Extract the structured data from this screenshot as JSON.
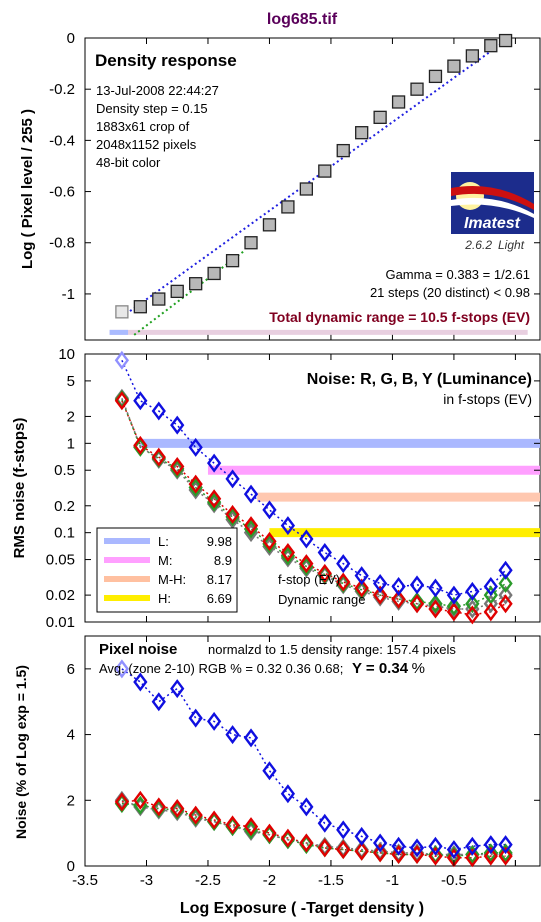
{
  "figure_title": "log685.tif",
  "x_axis": {
    "label": "Log Exposure ( -Target density )",
    "range": [
      -3.5,
      0.2
    ],
    "ticks": [
      -3.5,
      -3,
      -2.5,
      -2,
      -1.5,
      -1,
      -0.5
    ],
    "tick_labels": [
      "-3.5",
      "-3",
      "-2.5",
      "-2",
      "-1.5",
      "-1",
      "-0.5"
    ]
  },
  "colors": {
    "title": "#5a005a",
    "red": "#e00000",
    "green": "#2a9a2a",
    "blue": "#1010e0",
    "gray": "#666666",
    "purple_text": "#800020",
    "light_blue": "#aabbff"
  },
  "chart_data": [
    {
      "type": "scatter",
      "id": "density",
      "title": "Density response",
      "ylabel": "Log ( Pixel level / 255 )",
      "ylim": [
        -1.18,
        0.0
      ],
      "yticks": [
        0,
        -0.2,
        -0.4,
        -0.6,
        -0.8,
        -1
      ],
      "ytick_labels": [
        "0",
        "-0.2",
        "-0.4",
        "-0.6",
        "-0.8",
        "-1"
      ],
      "info_lines": [
        "13-Jul-2008 22:44:27",
        "Density step = 0.15",
        "1883x61 crop of",
        "2048x1152 pixels",
        "48-bit color"
      ],
      "logo_text": "Imatest",
      "version": "2.6.2",
      "version_edition": "Light",
      "gamma_text": "Gamma = 0.383 = 1/2.61",
      "steps_text": "21 steps (20 distinct) < 0.98",
      "dynamic_range_text": "Total dynamic range = 10.5 f-stops (EV)",
      "series": [
        {
          "x": [
            -3.2,
            -3.05,
            -2.9,
            -2.75,
            -2.6,
            -2.45,
            -2.3,
            -2.15,
            -2.0,
            -1.85,
            -1.7,
            -1.55,
            -1.4,
            -1.25,
            -1.1,
            -0.95,
            -0.8,
            -0.65,
            -0.5,
            -0.35,
            -0.2,
            -0.08
          ],
          "values": [
            -1.07,
            -1.05,
            -1.02,
            -0.99,
            -0.96,
            -0.92,
            -0.87,
            -0.8,
            -0.73,
            -0.66,
            -0.59,
            -0.52,
            -0.44,
            -0.37,
            -0.31,
            -0.25,
            -0.2,
            -0.15,
            -0.11,
            -0.07,
            -0.03,
            -0.01
          ]
        }
      ],
      "fit_line": {
        "x": [
          -3.2,
          -0.05
        ],
        "values": [
          -1.09,
          0.0
        ]
      },
      "range_bar": {
        "x": [
          -3.3,
          0.1
        ],
        "value": -1.15
      }
    },
    {
      "type": "line",
      "id": "noise",
      "title": "Noise: R, G, B, Y (Luminance)",
      "subtitle": "in f-stops (EV)",
      "ylabel": "RMS noise (f-stops)",
      "ylim": [
        0.01,
        10
      ],
      "yscale": "log",
      "yticks": [
        10,
        5,
        2,
        1,
        0.5,
        0.2,
        0.1,
        0.05,
        0.02,
        0.01
      ],
      "ytick_labels": [
        "10",
        "5",
        "2",
        "1",
        "0.5",
        "0.2",
        "0.1",
        "0.05",
        "0.02",
        "0.01"
      ],
      "legend": [
        {
          "label": "L:",
          "value": "9.98",
          "color": "#aab8ff"
        },
        {
          "label": "M:",
          "value": "8.9",
          "color": "#ffa0ff"
        },
        {
          "label": "M-H:",
          "value": "8.17",
          "color": "#ffc0a0"
        },
        {
          "label": "H:",
          "value": "6.69",
          "color": "#ffee00"
        }
      ],
      "hlines": [
        {
          "value": 1.0,
          "x0": -3.05,
          "color": "#aab8ff"
        },
        {
          "value": 0.5,
          "x0": -2.5,
          "color": "#ffa0ff"
        },
        {
          "value": 0.25,
          "x0": -2.1,
          "color": "#ffc8b0"
        },
        {
          "value": 0.1,
          "x0": -2.0,
          "color": "#ffee00"
        }
      ],
      "annotations": [
        "f-stop (EV)",
        "Dynamic range"
      ],
      "series": [
        {
          "name": "Y",
          "color": "#1010e0",
          "x": [
            -3.2,
            -3.05,
            -2.9,
            -2.75,
            -2.6,
            -2.45,
            -2.3,
            -2.15,
            -2.0,
            -1.85,
            -1.7,
            -1.55,
            -1.4,
            -1.25,
            -1.1,
            -0.95,
            -0.8,
            -0.65,
            -0.5,
            -0.35,
            -0.2,
            -0.08
          ],
          "values": [
            8.5,
            3.0,
            2.3,
            1.6,
            0.9,
            0.6,
            0.4,
            0.27,
            0.18,
            0.12,
            0.085,
            0.06,
            0.045,
            0.033,
            0.027,
            0.025,
            0.026,
            0.024,
            0.02,
            0.022,
            0.025,
            0.038
          ]
        },
        {
          "name": "R",
          "color": "#e00000",
          "x": [
            -3.2,
            -3.05,
            -2.9,
            -2.75,
            -2.6,
            -2.45,
            -2.3,
            -2.15,
            -2.0,
            -1.85,
            -1.7,
            -1.55,
            -1.4,
            -1.25,
            -1.1,
            -0.95,
            -0.8,
            -0.65,
            -0.5,
            -0.35,
            -0.2,
            -0.08
          ],
          "values": [
            3.0,
            0.95,
            0.7,
            0.55,
            0.35,
            0.24,
            0.16,
            0.12,
            0.08,
            0.06,
            0.045,
            0.035,
            0.028,
            0.024,
            0.02,
            0.018,
            0.016,
            0.014,
            0.013,
            0.012,
            0.013,
            0.016
          ]
        },
        {
          "name": "G",
          "color": "#2a9a2a",
          "x": [
            -3.2,
            -3.05,
            -2.9,
            -2.75,
            -2.6,
            -2.45,
            -2.3,
            -2.15,
            -2.0,
            -1.85,
            -1.7,
            -1.55,
            -1.4,
            -1.25,
            -1.1,
            -0.95,
            -0.8,
            -0.65,
            -0.5,
            -0.35,
            -0.2,
            -0.08
          ],
          "values": [
            3.1,
            0.9,
            0.68,
            0.52,
            0.32,
            0.22,
            0.15,
            0.11,
            0.075,
            0.055,
            0.042,
            0.034,
            0.027,
            0.023,
            0.02,
            0.018,
            0.017,
            0.016,
            0.015,
            0.016,
            0.02,
            0.027
          ]
        },
        {
          "name": "B",
          "color": "#777777",
          "x": [
            -3.2,
            -3.05,
            -2.9,
            -2.75,
            -2.6,
            -2.45,
            -2.3,
            -2.15,
            -2.0,
            -1.85,
            -1.7,
            -1.55,
            -1.4,
            -1.25,
            -1.1,
            -0.95,
            -0.8,
            -0.65,
            -0.5,
            -0.35,
            -0.2,
            -0.08
          ],
          "values": [
            3.2,
            0.92,
            0.66,
            0.5,
            0.3,
            0.21,
            0.14,
            0.1,
            0.07,
            0.052,
            0.04,
            0.033,
            0.026,
            0.022,
            0.019,
            0.017,
            0.016,
            0.015,
            0.014,
            0.014,
            0.016,
            0.02
          ]
        }
      ]
    },
    {
      "type": "line",
      "id": "pixel_noise",
      "title": "Pixel noise",
      "subtitle": "normalzd to 1.5 density range: 157.4 pixels",
      "avg_prefix": "Avg. (zone 2-10) RGB % = 0.32  0.36  0.68;",
      "avg_y": "Y = 0.34",
      "avg_suffix": "%",
      "ylabel": "Noise (% of Log exp = 1.5)",
      "ylim": [
        0,
        7
      ],
      "yticks": [
        0,
        2,
        4,
        6
      ],
      "ytick_labels": [
        "0",
        "2",
        "4",
        "6"
      ],
      "series": [
        {
          "name": "Y",
          "color": "#1010e0",
          "x": [
            -3.2,
            -3.05,
            -2.9,
            -2.75,
            -2.6,
            -2.45,
            -2.3,
            -2.15,
            -2.0,
            -1.85,
            -1.7,
            -1.55,
            -1.4,
            -1.25,
            -1.1,
            -0.95,
            -0.8,
            -0.65,
            -0.5,
            -0.35,
            -0.2,
            -0.08
          ],
          "values": [
            6.0,
            5.6,
            5.0,
            5.4,
            4.5,
            4.4,
            4.0,
            3.9,
            2.9,
            2.2,
            1.8,
            1.3,
            1.1,
            0.9,
            0.7,
            0.6,
            0.55,
            0.6,
            0.5,
            0.6,
            0.65,
            0.65
          ]
        },
        {
          "name": "R",
          "color": "#e00000",
          "x": [
            -3.2,
            -3.05,
            -2.9,
            -2.75,
            -2.6,
            -2.45,
            -2.3,
            -2.15,
            -2.0,
            -1.85,
            -1.7,
            -1.55,
            -1.4,
            -1.25,
            -1.1,
            -0.95,
            -0.8,
            -0.65,
            -0.5,
            -0.35,
            -0.2,
            -0.08
          ],
          "values": [
            1.95,
            2.0,
            1.8,
            1.75,
            1.55,
            1.4,
            1.25,
            1.2,
            1.0,
            0.85,
            0.7,
            0.55,
            0.5,
            0.45,
            0.4,
            0.35,
            0.35,
            0.3,
            0.25,
            0.25,
            0.3,
            0.3
          ]
        },
        {
          "name": "G",
          "color": "#2a9a2a",
          "x": [
            -3.2,
            -3.05,
            -2.9,
            -2.75,
            -2.6,
            -2.45,
            -2.3,
            -2.15,
            -2.0,
            -1.85,
            -1.7,
            -1.55,
            -1.4,
            -1.25,
            -1.1,
            -0.95,
            -0.8,
            -0.65,
            -0.5,
            -0.35,
            -0.2,
            -0.08
          ],
          "values": [
            1.9,
            1.85,
            1.75,
            1.7,
            1.5,
            1.35,
            1.2,
            1.1,
            0.95,
            0.8,
            0.65,
            0.55,
            0.5,
            0.45,
            0.4,
            0.35,
            0.35,
            0.35,
            0.3,
            0.35,
            0.4,
            0.4
          ]
        },
        {
          "name": "B",
          "color": "#777777",
          "x": [
            -3.2,
            -3.05,
            -2.9,
            -2.75,
            -2.6,
            -2.45,
            -2.3,
            -2.15,
            -2.0,
            -1.85,
            -1.7,
            -1.55,
            -1.4,
            -1.25,
            -1.1,
            -0.95,
            -0.8,
            -0.65,
            -0.5,
            -0.35,
            -0.2,
            -0.08
          ],
          "values": [
            2.0,
            1.8,
            1.7,
            1.65,
            1.45,
            1.35,
            1.2,
            1.05,
            0.95,
            0.8,
            0.7,
            0.6,
            0.55,
            0.5,
            0.45,
            0.4,
            0.4,
            0.35,
            0.35,
            0.35,
            0.35,
            0.35
          ]
        }
      ]
    }
  ]
}
